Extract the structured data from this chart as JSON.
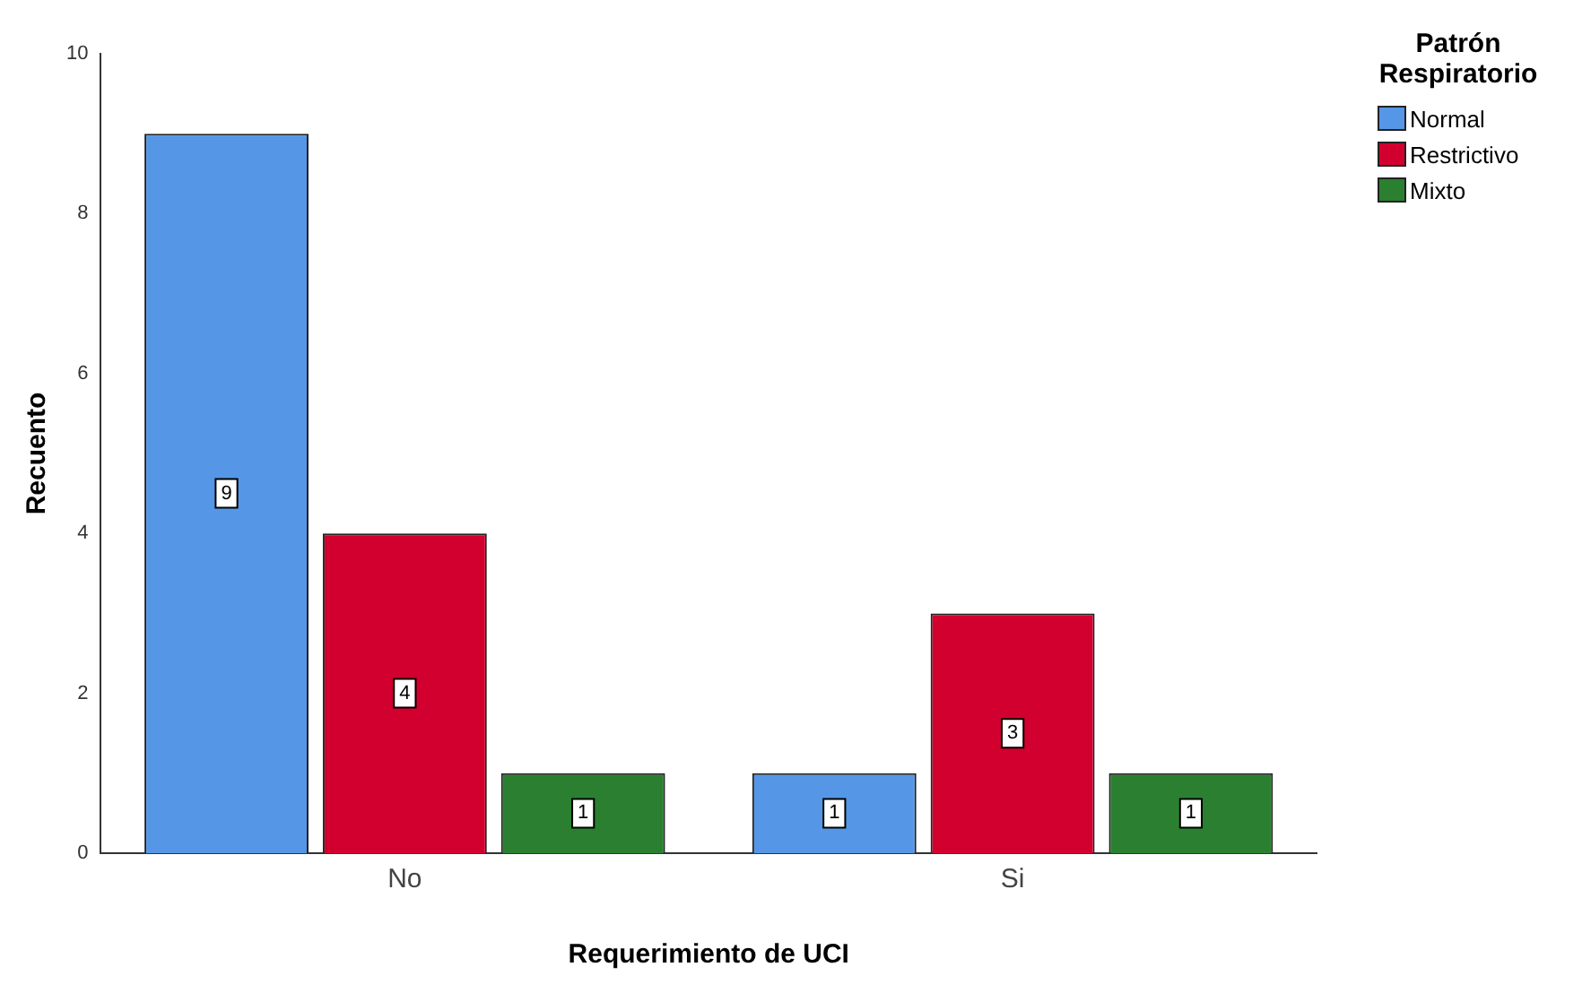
{
  "chart_data": {
    "type": "bar",
    "xlabel": "Requerimiento de UCI",
    "ylabel": "Recuento",
    "legend_title": "Patrón Respiratorio",
    "categories": [
      "No",
      "Si"
    ],
    "series": [
      {
        "name": "Normal",
        "color": "#5596e6",
        "values": [
          9,
          1
        ]
      },
      {
        "name": "Restrictivo",
        "color": "#d2002e",
        "values": [
          4,
          3
        ]
      },
      {
        "name": "Mixto",
        "color": "#2a8030",
        "values": [
          1,
          1
        ]
      }
    ],
    "ylim": [
      0,
      10
    ],
    "yticks": [
      0,
      2,
      4,
      6,
      8,
      10
    ],
    "grid": false,
    "legend": "top right",
    "data_labels": true
  }
}
